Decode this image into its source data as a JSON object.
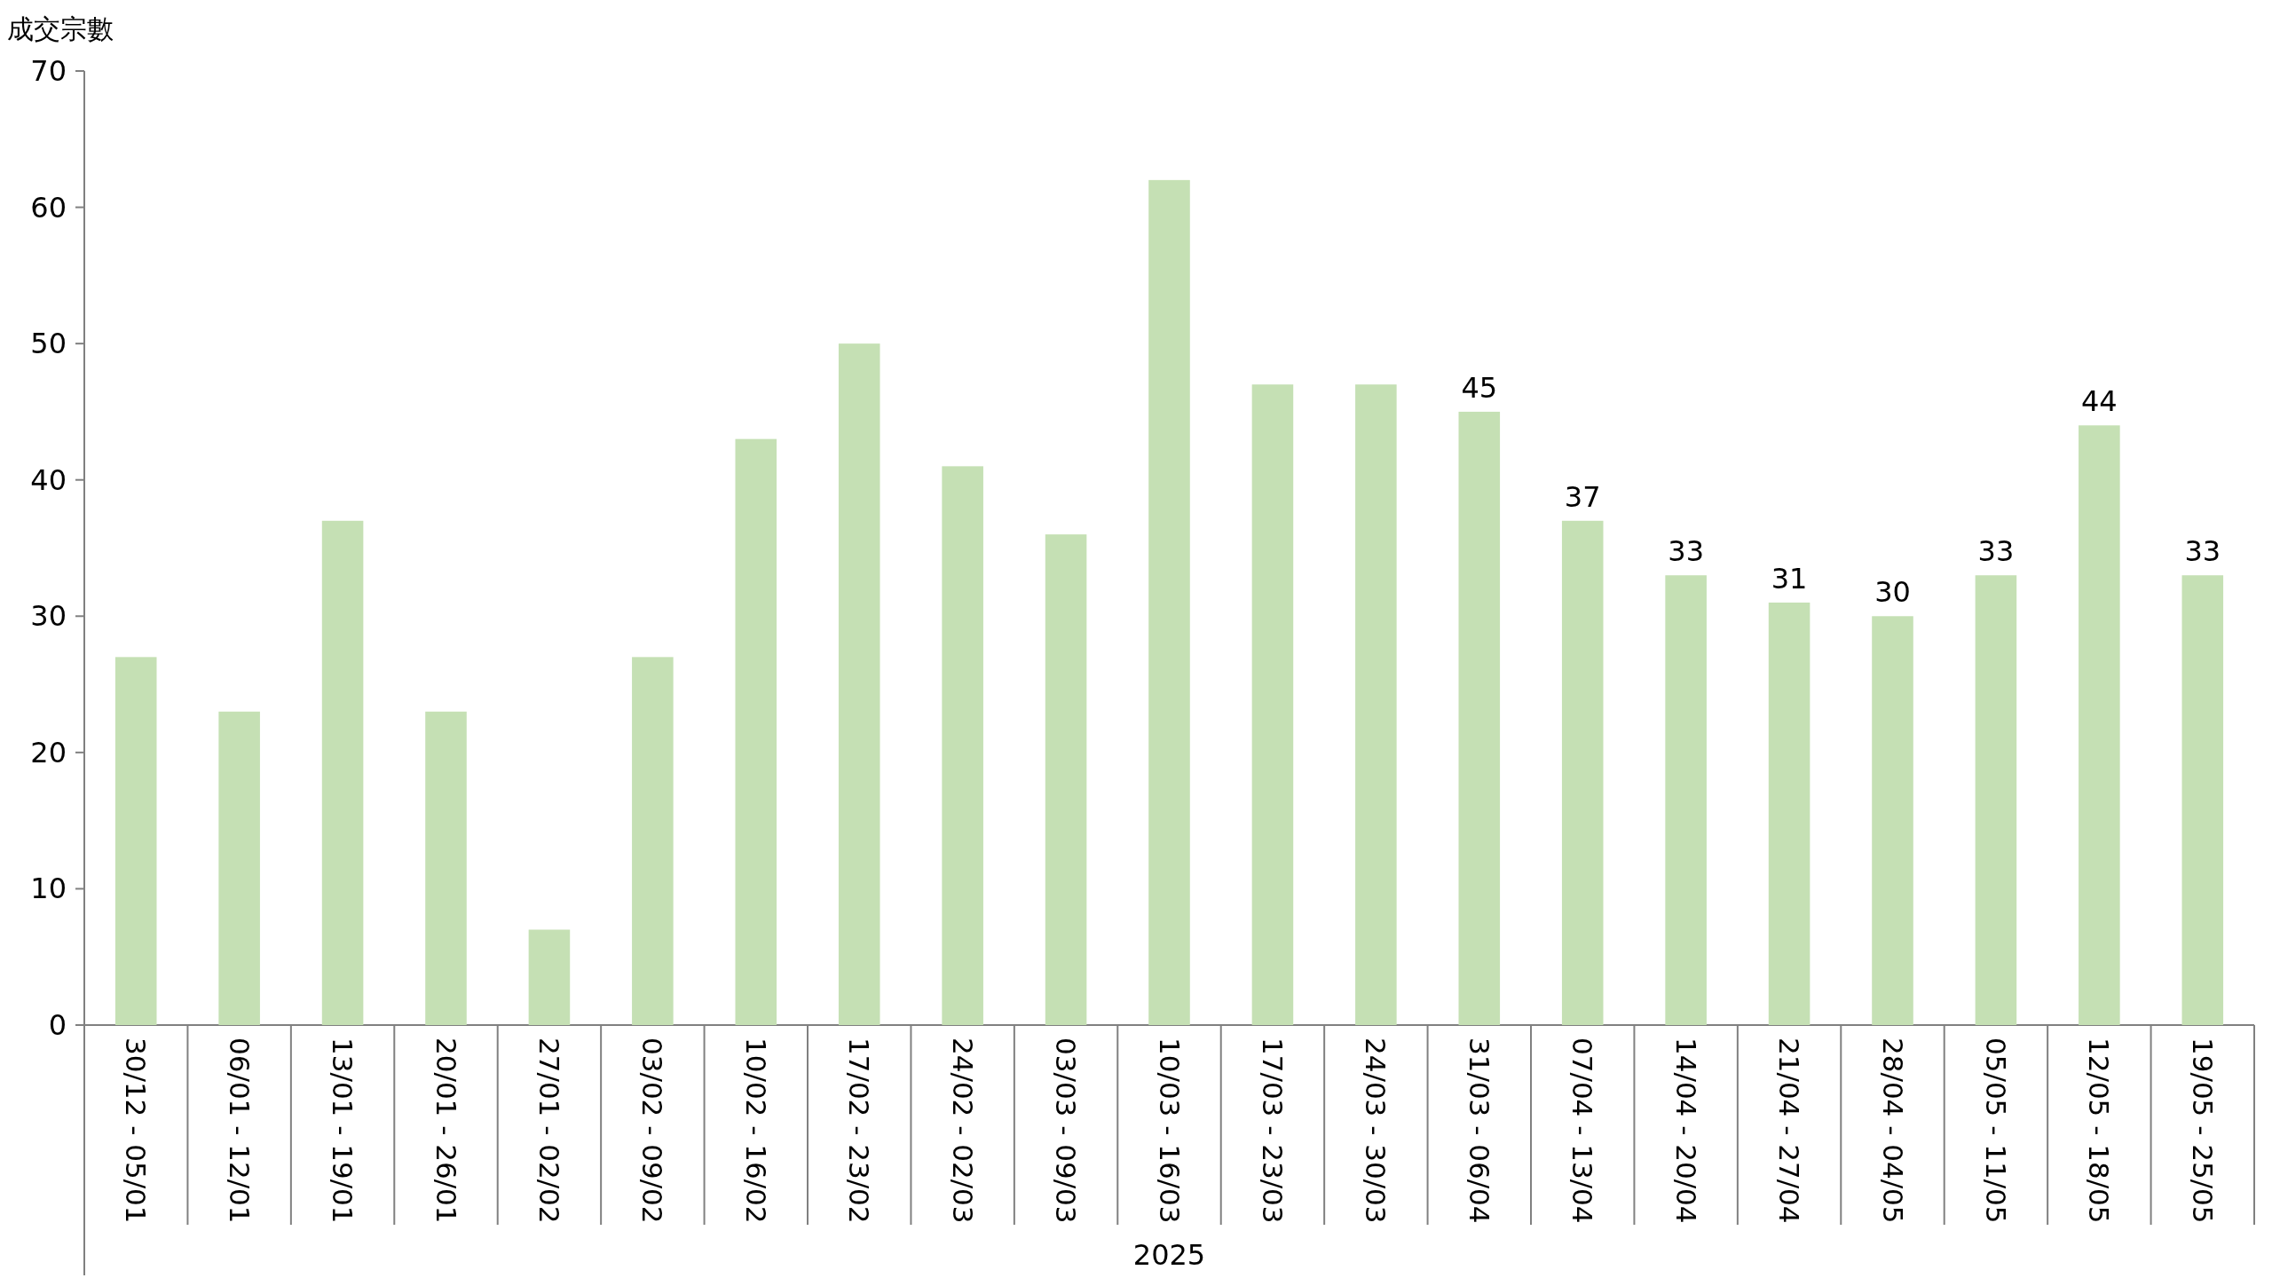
{
  "chart_data": {
    "type": "bar",
    "ylabel": "成交宗數",
    "xlabel": "2025",
    "categories": [
      "30/12 - 05/01",
      "06/01 - 12/01",
      "13/01 - 19/01",
      "20/01 - 26/01",
      "27/01 - 02/02",
      "03/02 - 09/02",
      "10/02 - 16/02",
      "17/02 - 23/02",
      "24/02 - 02/03",
      "03/03 - 09/03",
      "10/03 - 16/03",
      "17/03 - 23/03",
      "24/03 - 30/03",
      "31/03 - 06/04",
      "07/04 - 13/04",
      "14/04 - 20/04",
      "21/04 - 27/04",
      "28/04 - 04/05",
      "05/05 - 11/05",
      "12/05 - 18/05",
      "19/05 - 25/05"
    ],
    "values": [
      27,
      23,
      37,
      23,
      7,
      27,
      43,
      50,
      41,
      36,
      62,
      47,
      47,
      45,
      37,
      33,
      31,
      30,
      33,
      44,
      33
    ],
    "value_labels": [
      null,
      null,
      null,
      null,
      null,
      null,
      null,
      null,
      null,
      null,
      null,
      null,
      null,
      "45",
      "37",
      "33",
      "31",
      "30",
      "33",
      "44",
      "33"
    ],
    "color": "#c5e0b4",
    "ylim": [
      0,
      70
    ],
    "yticks": [
      0,
      10,
      20,
      30,
      40,
      50,
      60,
      70
    ]
  }
}
